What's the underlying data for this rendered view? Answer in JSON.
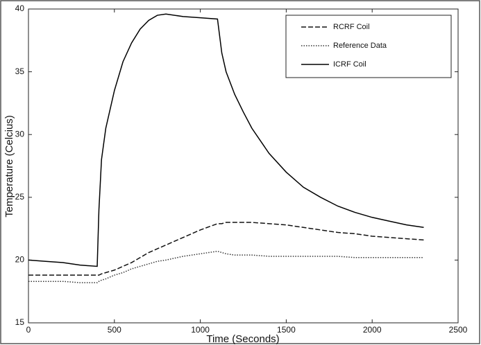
{
  "chart_data": {
    "type": "line",
    "x_label": "Time (Seconds)",
    "y_label": "Temperature (Celcius)",
    "x": [
      0,
      100,
      200,
      300,
      400,
      410,
      425,
      450,
      500,
      550,
      600,
      650,
      700,
      750,
      800,
      900,
      1000,
      1100,
      1125,
      1150,
      1200,
      1250,
      1300,
      1400,
      1500,
      1600,
      1700,
      1800,
      1900,
      2000,
      2100,
      2200,
      2300
    ],
    "series": [
      {
        "name": "RCRF Coil",
        "color": "#111111",
        "style": "dashed",
        "values": [
          18.8,
          18.8,
          18.8,
          18.8,
          18.8,
          18.8,
          18.9,
          19.0,
          19.2,
          19.5,
          19.8,
          20.2,
          20.6,
          20.9,
          21.2,
          21.8,
          22.4,
          22.9,
          22.9,
          23.0,
          23.0,
          23.0,
          23.0,
          22.9,
          22.8,
          22.6,
          22.4,
          22.2,
          22.1,
          21.9,
          21.8,
          21.7,
          21.6
        ]
      },
      {
        "name": "Reference Data",
        "color": "#333333",
        "style": "dotted",
        "values": [
          18.3,
          18.3,
          18.3,
          18.2,
          18.2,
          18.3,
          18.4,
          18.5,
          18.8,
          19.0,
          19.3,
          19.5,
          19.7,
          19.9,
          20.0,
          20.3,
          20.5,
          20.7,
          20.6,
          20.5,
          20.4,
          20.4,
          20.4,
          20.3,
          20.3,
          20.3,
          20.3,
          20.3,
          20.2,
          20.2,
          20.2,
          20.2,
          20.2
        ]
      },
      {
        "name": "ICRF Coil",
        "color": "#000000",
        "style": "solid",
        "values": [
          20.0,
          19.9,
          19.8,
          19.6,
          19.5,
          24.0,
          28.0,
          30.5,
          33.5,
          35.8,
          37.3,
          38.4,
          39.1,
          39.5,
          39.6,
          39.4,
          39.3,
          39.2,
          36.5,
          35.0,
          33.2,
          31.8,
          30.5,
          28.5,
          27.0,
          25.8,
          25.0,
          24.3,
          23.8,
          23.4,
          23.1,
          22.8,
          22.6
        ]
      }
    ],
    "xlim": [
      0,
      2500
    ],
    "xticks": [
      0,
      500,
      1000,
      1500,
      2000,
      2500
    ],
    "ylim": [
      15,
      40
    ],
    "yticks": [
      15,
      20,
      25,
      30,
      35,
      40
    ],
    "legend": "top-right"
  }
}
